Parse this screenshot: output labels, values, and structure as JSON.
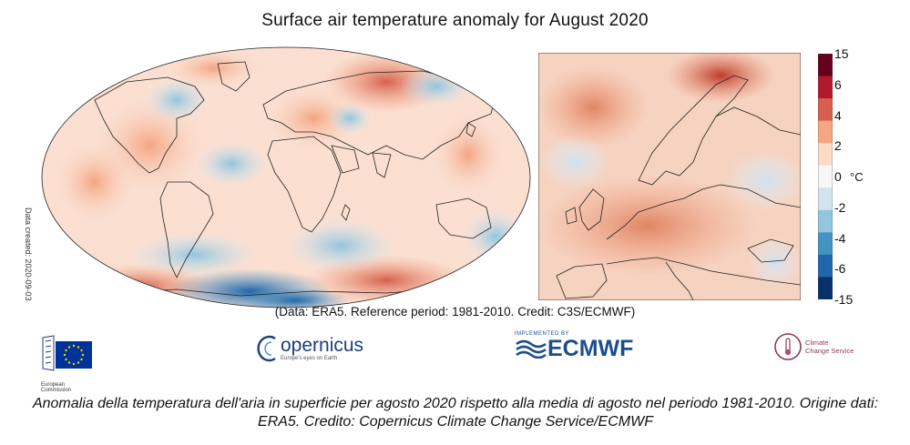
{
  "title": "Surface air temperature anomaly for August 2020",
  "date_created": "Data created: 2020-09-03",
  "legend": {
    "ticks": [
      "15",
      "6",
      "4",
      "2",
      "0",
      "-2",
      "-4",
      "-6",
      "-15"
    ],
    "unit": "°C",
    "colors": [
      "#08306b",
      "#2166ac",
      "#4393c3",
      "#92c5de",
      "#d1e5f0",
      "#f7f7f7",
      "#fddbc7",
      "#f4a582",
      "#d6604d",
      "#b2182b",
      "#67001f"
    ]
  },
  "source_line": "(Data: ERA5.  Reference period: 1981-2010.  Credit: C3S/ECMWF)",
  "logos": {
    "eu": {
      "text": "European Commission"
    },
    "copernicus": {
      "name": "opernicus",
      "tagline": "Europe's eyes on Earth"
    },
    "ecmwf": {
      "top": "IMPLEMENTED BY",
      "name": "ECMWF"
    },
    "c3s": {
      "line1": "Climate",
      "line2": "Change Service"
    }
  },
  "caption": "Anomalia della temperatura dell'aria in superficie per agosto 2020 rispetto alla media di agosto nel periodo 1981-2010. Origine dati: ERA5. Credito: Copernicus Climate Change Service/ECMWF"
}
